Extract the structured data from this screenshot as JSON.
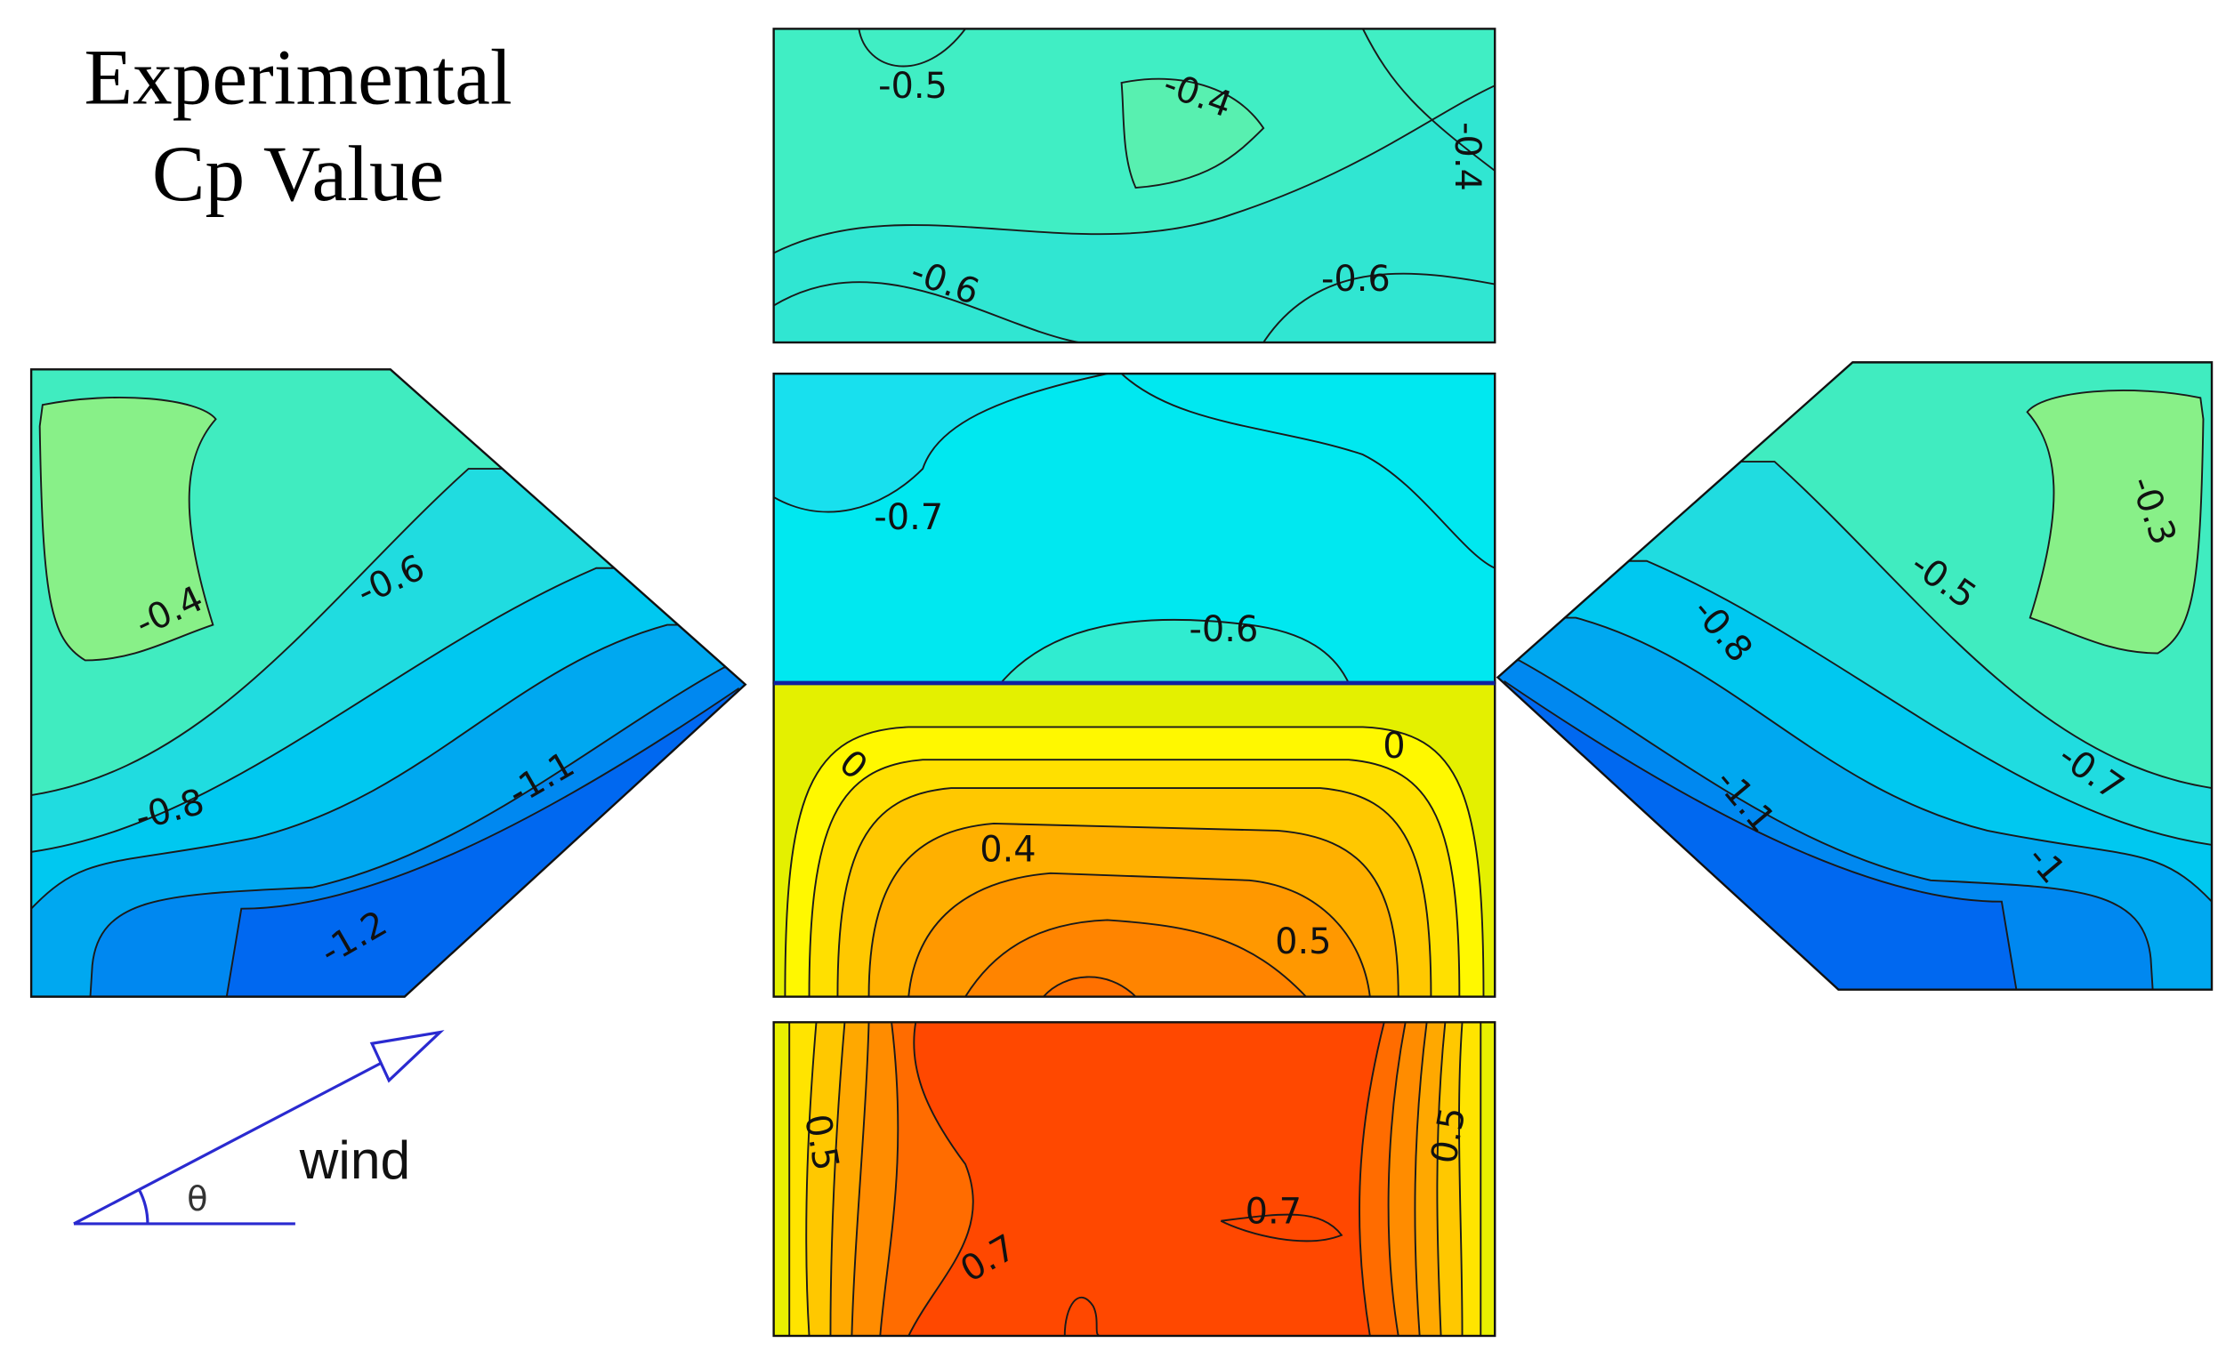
{
  "title": [
    "Experimental",
    "Cp Value"
  ],
  "panels": [
    {
      "labels": [
        "-0.5",
        "-0.4",
        "-0.4",
        "-0.6",
        "-0.6"
      ]
    },
    {
      "labels": [
        "-0.7",
        "-0.6"
      ]
    },
    {
      "labels": [
        "0",
        "0",
        "0.4",
        "0.5"
      ]
    },
    {
      "labels": [
        "0.5",
        "0.7",
        "0.7",
        "0.5"
      ]
    },
    {
      "labels": [
        "-0.4",
        "-0.6",
        "-0.8",
        "-1.1",
        "-1.2"
      ]
    },
    {
      "labels": [
        "-0.3",
        "-0.5",
        "-0.8",
        "-0.7",
        "-1.1",
        "-1"
      ]
    }
  ],
  "wind": {
    "label": "wind",
    "angle": "θ"
  }
}
